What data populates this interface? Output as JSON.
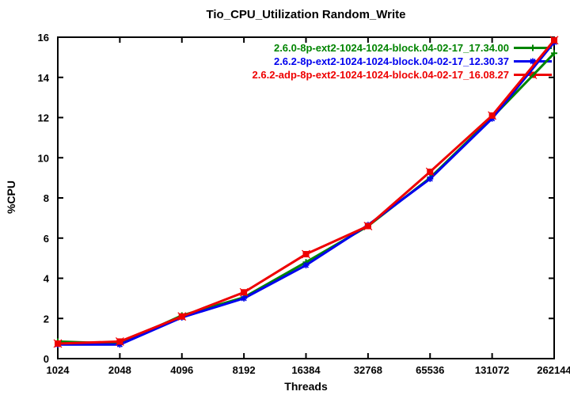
{
  "title": "Tio_CPU_Utilization Random_Write",
  "colors": {
    "background": "#ffffff",
    "axis": "#000000",
    "title_text": "#000000"
  },
  "chart_data": {
    "type": "line",
    "title": "Tio_CPU_Utilization Random_Write",
    "xlabel": "Threads",
    "ylabel": "%CPU",
    "x_scale": "log2",
    "categories": [
      "1024",
      "2048",
      "4096",
      "8192",
      "16384",
      "32768",
      "65536",
      "131072",
      "262144"
    ],
    "y_ticks": [
      0,
      2,
      4,
      6,
      8,
      10,
      12,
      14,
      16
    ],
    "ylim": [
      0,
      16
    ],
    "grid": false,
    "legend_position": "top-right-inside",
    "series": [
      {
        "name": "2.6.0-8p-ext2-1024-1024-block.04-02-17_17.34.00",
        "color": "#008400",
        "marker": "plus",
        "values": [
          0.85,
          0.75,
          2.15,
          3.05,
          4.8,
          6.6,
          9.0,
          12.0,
          15.2
        ]
      },
      {
        "name": "2.6.2-8p-ext2-1024-1024-block.04-02-17_12.30.37",
        "color": "#0000ee",
        "marker": "asterisk",
        "values": [
          0.7,
          0.7,
          2.05,
          3.0,
          4.65,
          6.65,
          8.95,
          11.95,
          15.75
        ]
      },
      {
        "name": "2.6.2-adp-8p-ext2-1024-1024-block.04-02-17_16.08.27",
        "color": "#ee0000",
        "marker": "filled-square",
        "values": [
          0.75,
          0.85,
          2.1,
          3.3,
          5.2,
          6.6,
          9.3,
          12.1,
          15.85
        ]
      }
    ]
  }
}
